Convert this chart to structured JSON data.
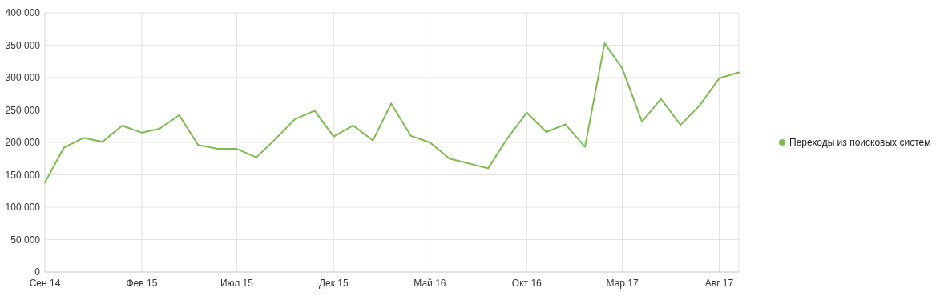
{
  "chart_data": {
    "type": "line",
    "x": [
      "2014-09",
      "2014-10",
      "2014-11",
      "2014-12",
      "2015-01",
      "2015-02",
      "2015-03",
      "2015-04",
      "2015-05",
      "2015-06",
      "2015-07",
      "2015-08",
      "2015-09",
      "2015-10",
      "2015-11",
      "2015-12",
      "2016-01",
      "2016-02",
      "2016-03",
      "2016-04",
      "2016-05",
      "2016-06",
      "2016-08",
      "2016-09",
      "2016-10",
      "2016-11",
      "2016-12",
      "2017-01",
      "2017-02",
      "2017-03",
      "2017-04",
      "2017-05",
      "2017-06",
      "2017-07",
      "2017-08",
      "2017-09"
    ],
    "series": [
      {
        "name": "Переходы из поисковых систем",
        "color": "#7dbb4f",
        "values": [
          138000,
          192000,
          207000,
          201000,
          226000,
          215000,
          221000,
          242000,
          196000,
          190000,
          190000,
          177000,
          206000,
          236000,
          249000,
          209000,
          226000,
          203000,
          260000,
          210000,
          200000,
          175000,
          160000,
          207000,
          246000,
          216000,
          228000,
          193000,
          353000,
          314000,
          232000,
          267000,
          227000,
          257000,
          299000,
          308000
        ]
      }
    ],
    "xlim": [
      "2014-09",
      "2017-09"
    ],
    "xticks": [
      {
        "value": "2014-09",
        "label": "Сен 14"
      },
      {
        "value": "2015-02",
        "label": "Фев 15"
      },
      {
        "value": "2015-07",
        "label": "Июл 15"
      },
      {
        "value": "2015-12",
        "label": "Дек 15"
      },
      {
        "value": "2016-05",
        "label": "Май 16"
      },
      {
        "value": "2016-10",
        "label": "Окт 16"
      },
      {
        "value": "2017-03",
        "label": "Мар 17"
      },
      {
        "value": "2017-08",
        "label": "Авг 17"
      }
    ],
    "ylim": [
      0,
      400000
    ],
    "yticks": [
      0,
      {
        "value": 50000,
        "label": "50 000"
      },
      {
        "value": 100000,
        "label": "100 000"
      },
      {
        "value": 150000,
        "label": "150 000"
      },
      {
        "value": 200000,
        "label": "200 000"
      },
      {
        "value": 250000,
        "label": "250 000"
      },
      {
        "value": 300000,
        "label": "300 000"
      },
      {
        "value": 350000,
        "label": "350 000"
      },
      {
        "value": 400000,
        "label": "400 000"
      }
    ],
    "grid": true,
    "legend": "right",
    "marker": "none",
    "line_style": "solid"
  }
}
